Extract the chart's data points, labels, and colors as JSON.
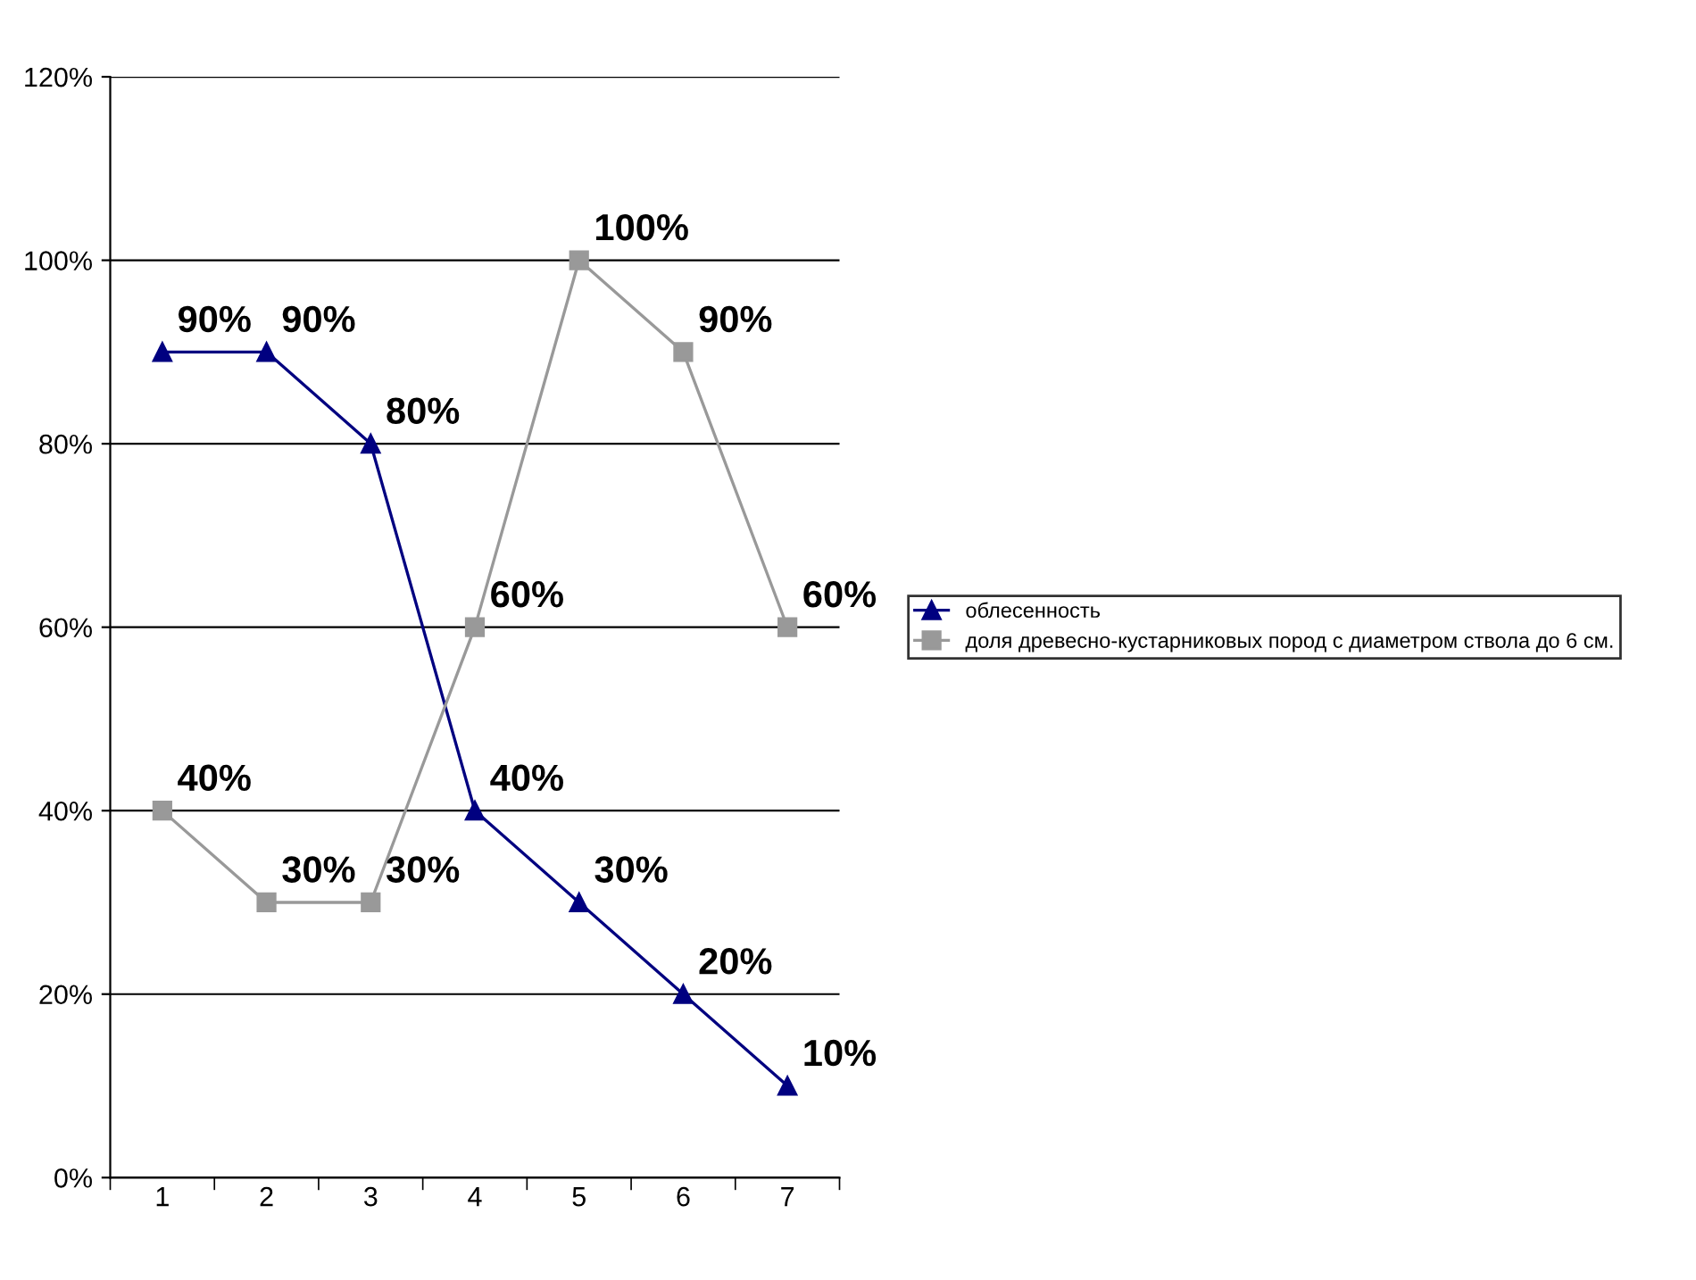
{
  "chart_data": {
    "type": "line",
    "categories": [
      "1",
      "2",
      "3",
      "4",
      "5",
      "6",
      "7"
    ],
    "series": [
      {
        "name": "облесенность",
        "color": "#000080",
        "marker": "triangle",
        "values": [
          90,
          90,
          80,
          40,
          30,
          20,
          10
        ],
        "value_labels": [
          "90%",
          "90%",
          "80%",
          "40%",
          "30%",
          "20%",
          "10%"
        ]
      },
      {
        "name": "доля древесно-кустарниковых пород с диаметром ствола до 6 см.",
        "color": "#999999",
        "marker": "square",
        "values": [
          40,
          30,
          30,
          60,
          100,
          90,
          60
        ],
        "value_labels": [
          "40%",
          "30%",
          "30%",
          "60%",
          "100%",
          "90%",
          "60%"
        ]
      }
    ],
    "ylim": [
      0,
      120
    ],
    "yticks": [
      {
        "value": 0,
        "label": "0%"
      },
      {
        "value": 20,
        "label": "20%"
      },
      {
        "value": 40,
        "label": "40%"
      },
      {
        "value": 60,
        "label": "60%"
      },
      {
        "value": 80,
        "label": "80%"
      },
      {
        "value": 100,
        "label": "100%"
      },
      {
        "value": 120,
        "label": "120%"
      }
    ],
    "grid": "y",
    "legend": "right",
    "line_style": "solid"
  }
}
